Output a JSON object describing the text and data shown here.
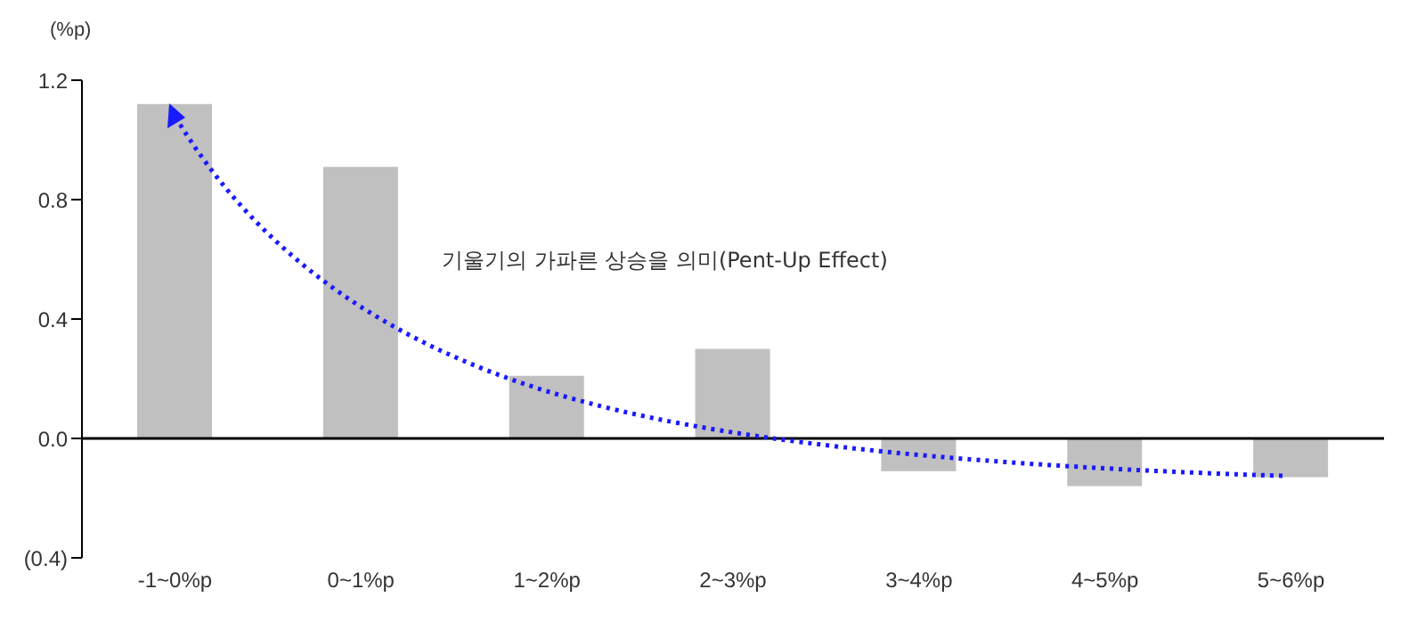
{
  "chart_data": {
    "type": "bar",
    "ylabel": "(%p)",
    "categories": [
      "-1~0%p",
      "0~1%p",
      "1~2%p",
      "2~3%p",
      "3~4%p",
      "4~5%p",
      "5~6%p"
    ],
    "values": [
      1.12,
      0.91,
      0.21,
      0.3,
      -0.11,
      -0.16,
      -0.13
    ],
    "color": "#c0c0c0",
    "ylim": [
      -0.4,
      1.2
    ],
    "yticks": [
      {
        "value": -0.4,
        "label": "(0.4)"
      },
      {
        "value": 0,
        "label": "0.0"
      },
      {
        "value": 0.4,
        "label": "0.4"
      },
      {
        "value": 0.8,
        "label": "0.8"
      },
      {
        "value": 1.2,
        "label": "1.2"
      }
    ],
    "annotations": [
      "기울기의 가파른 상승을 의미(Pent-Up Effect)"
    ],
    "legend": false
  }
}
